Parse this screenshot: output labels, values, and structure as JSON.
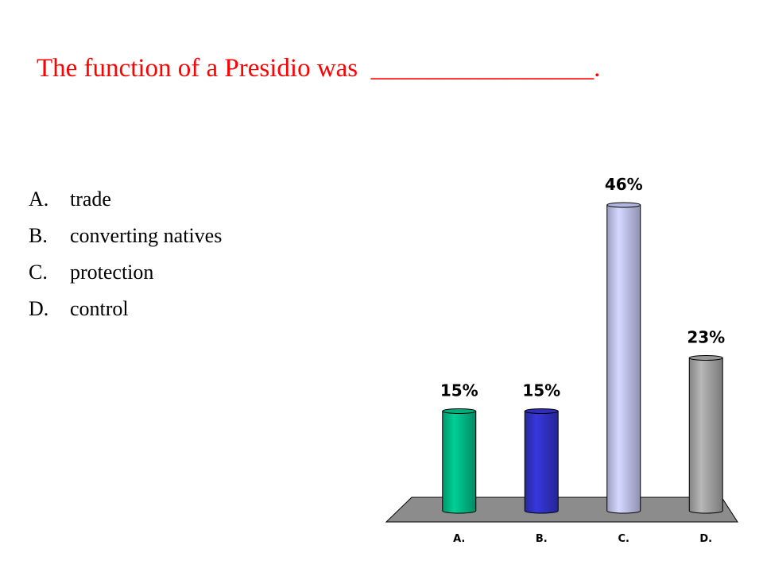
{
  "question": {
    "text": "The function of a Presidio was  _________________."
  },
  "answers": [
    {
      "letter": "A.",
      "text": "trade"
    },
    {
      "letter": "B.",
      "text": "converting natives"
    },
    {
      "letter": "C.",
      "text": "protection"
    },
    {
      "letter": "D.",
      "text": "control"
    }
  ],
  "chart_data": {
    "type": "bar",
    "categories": [
      "A.",
      "B.",
      "C.",
      "D."
    ],
    "values": [
      15,
      15,
      46,
      23
    ],
    "value_labels": [
      "15%",
      "15%",
      "46%",
      "23%"
    ],
    "colors": [
      "#00c08b",
      "#3333cc",
      "#c6c8f6",
      "#a9a9a9"
    ],
    "floor_color": "#8c8c8c",
    "bar_shape": "cylinder",
    "title": "",
    "xlabel": "",
    "ylabel": "",
    "ylim": [
      0,
      46
    ],
    "grid": false,
    "legend": "none"
  }
}
